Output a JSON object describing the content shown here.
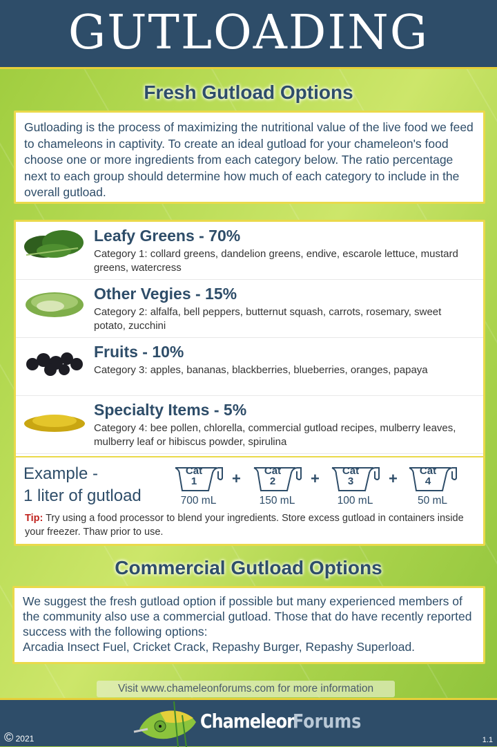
{
  "header": {
    "title": "GUTLOADING"
  },
  "fresh": {
    "title": "Fresh Gutload Options",
    "intro": "Gutloading is the process of maximizing the nutritional value of the live food we feed to chameleons in captivity.  To create an ideal gutload for your chameleon's food choose one or more ingredients from each category below.  The ratio percentage next to each group should determine how much of each category to include in the overall gutload."
  },
  "categories": [
    {
      "title": "Leafy Greens - 70%",
      "desc": "Category 1: collard greens, dandelion greens, endive, escarole lettuce, mustard greens, watercress",
      "image": "leafy-greens"
    },
    {
      "title": "Other Vegies - 15%",
      "desc": "Category 2: alfalfa, bell peppers, butternut squash, carrots, rosemary, sweet potato, zucchini",
      "image": "alfalfa-sprouts"
    },
    {
      "title": "Fruits - 10%",
      "desc": "Category 3: apples, bananas, blackberries, blueberries, oranges, papaya",
      "image": "blackberries"
    },
    {
      "title": "Specialty Items - 5%",
      "desc": "Category 4: bee pollen, chlorella, commercial gutload recipes, mulberry leaves, mulberry leaf or hibiscus powder, spirulina",
      "image": "bee-pollen"
    }
  ],
  "example": {
    "line1": "Example -",
    "line2": "1 liter of gutload",
    "plus": "+",
    "cups": [
      {
        "cat": "Cat",
        "num": "1",
        "amount": "700 mL"
      },
      {
        "cat": "Cat",
        "num": "2",
        "amount": "150 mL"
      },
      {
        "cat": "Cat",
        "num": "3",
        "amount": "100 mL"
      },
      {
        "cat": "Cat",
        "num": "4",
        "amount": "50 mL"
      }
    ],
    "tip_label": "Tip:",
    "tip": " Try using a food processor to blend your ingredients.  Store excess gutload in containers inside your freezer.  Thaw prior to use."
  },
  "commercial": {
    "title": "Commercial Gutload Options",
    "text": "We suggest the fresh gutload option if possible but many experienced members of the community also use a commercial gutload.  Those that do have recently reported success with the following options:",
    "options": "Arcadia Insect Fuel, Cricket Crack, Repashy Burger, Repashy Superload."
  },
  "visit": "Visit www.chameleonforums.com for more information",
  "footer": {
    "copyright_symbol": "©",
    "year": "2021",
    "logo_word1": "Chameleon",
    "logo_word2": "Forums",
    "version": "1.1"
  },
  "colors": {
    "header": "#2e4d69",
    "accent_border": "#ead94a",
    "heading": "#2e4d69",
    "tip": "#c0221e"
  }
}
